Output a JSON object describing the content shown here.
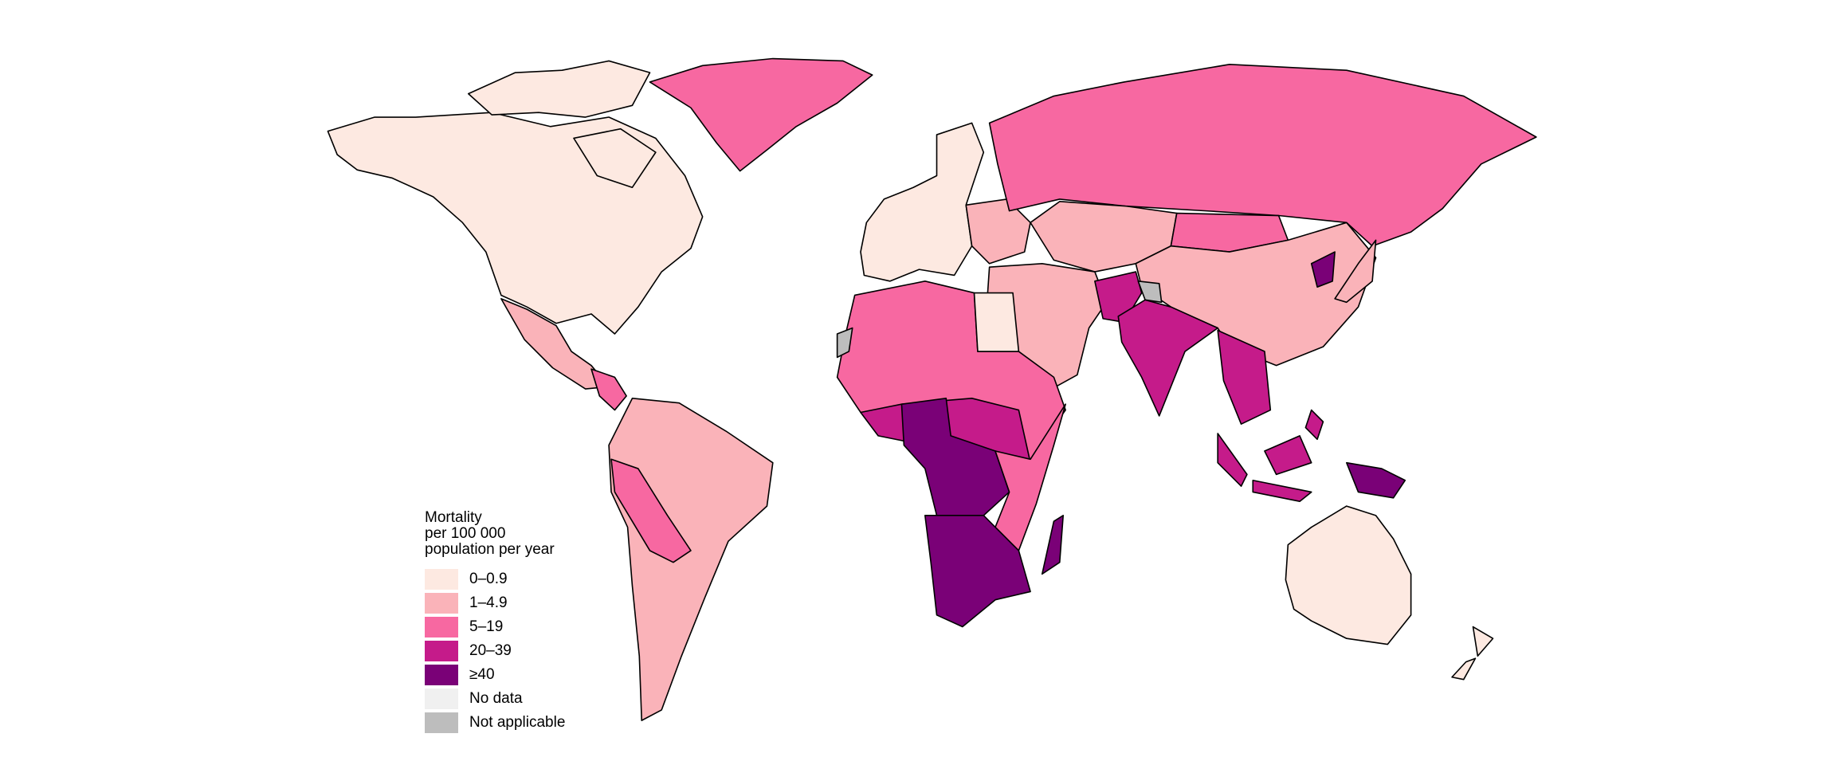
{
  "chart_data": {
    "type": "choropleth",
    "legend": {
      "title_lines": [
        "Mortality",
        "per 100 000",
        "population per year"
      ],
      "placement": "bottom-left"
    },
    "classes": [
      {
        "id": "c0",
        "label": "0–0.9",
        "color": "#fde9e1"
      },
      {
        "id": "c1",
        "label": "1–4.9",
        "color": "#fab3b9"
      },
      {
        "id": "c2",
        "label": "5–19",
        "color": "#f768a1"
      },
      {
        "id": "c3",
        "label": "20–39",
        "color": "#c51b8a"
      },
      {
        "id": "c4",
        "label": "≥40",
        "color": "#7a0177"
      },
      {
        "id": "nd",
        "label": "No data",
        "color": "#f0f0f0"
      },
      {
        "id": "na",
        "label": "Not applicable",
        "color": "#bdbdbd"
      }
    ],
    "regions": [
      {
        "name": "North America (Canada, USA)",
        "class": "c0"
      },
      {
        "name": "Arctic islands",
        "class": "c0"
      },
      {
        "name": "Greenland",
        "class": "c2"
      },
      {
        "name": "Mexico",
        "class": "c1"
      },
      {
        "name": "Central America",
        "class": "c2"
      },
      {
        "name": "South America",
        "class": "c1"
      },
      {
        "name": "Peru / Bolivia",
        "class": "c2"
      },
      {
        "name": "Western Europe",
        "class": "c0"
      },
      {
        "name": "Eastern Europe",
        "class": "c1"
      },
      {
        "name": "Russia",
        "class": "c2"
      },
      {
        "name": "Central Asia",
        "class": "c1"
      },
      {
        "name": "Mongolia",
        "class": "c2"
      },
      {
        "name": "China",
        "class": "c1"
      },
      {
        "name": "Middle East",
        "class": "c1"
      },
      {
        "name": "Afghanistan / Pakistan",
        "class": "c3"
      },
      {
        "name": "Kashmir",
        "class": "na"
      },
      {
        "name": "India",
        "class": "c3"
      },
      {
        "name": "Southeast Asia",
        "class": "c3"
      },
      {
        "name": "Korea (DPR)",
        "class": "c4"
      },
      {
        "name": "Japan",
        "class": "c1"
      },
      {
        "name": "North Africa",
        "class": "c2"
      },
      {
        "name": "Egypt",
        "class": "c0"
      },
      {
        "name": "Western Sahara",
        "class": "na"
      },
      {
        "name": "West & Central Africa",
        "class": "c3"
      },
      {
        "name": "Nigeria / Congo",
        "class": "c4"
      },
      {
        "name": "East Africa",
        "class": "c2"
      },
      {
        "name": "Southern Africa",
        "class": "c4"
      },
      {
        "name": "Madagascar",
        "class": "c4"
      },
      {
        "name": "Indonesia",
        "class": "c3"
      },
      {
        "name": "Papua New Guinea",
        "class": "c4"
      },
      {
        "name": "Australia",
        "class": "c0"
      },
      {
        "name": "New Zealand",
        "class": "c0"
      }
    ]
  }
}
